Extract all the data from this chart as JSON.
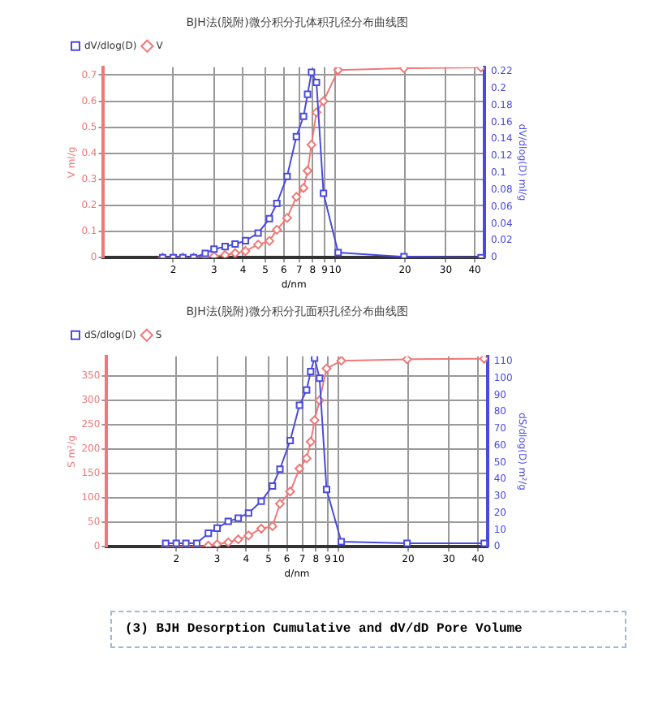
{
  "chart_data": [
    {
      "type": "line",
      "title": "BJH法(脱附)微分积分孔体积孔径分布曲线图",
      "xlabel": "d/nm",
      "ylabel": "V ml/g",
      "y2label": "dV/dlog(D) ml/g",
      "log": "x",
      "grid": true,
      "legend": "top left",
      "line_style": "solid",
      "x": [
        1.8,
        2.0,
        2.2,
        2.45,
        2.75,
        3.0,
        3.35,
        3.7,
        4.1,
        4.65,
        5.2,
        5.6,
        6.2,
        6.8,
        7.3,
        7.6,
        7.9,
        8.3,
        8.9,
        10.3,
        19.8,
        42.6
      ],
      "xlim": [
        1,
        44
      ],
      "xticks": [
        2,
        3,
        4,
        5,
        6,
        7,
        8,
        9,
        10,
        20,
        30,
        40
      ],
      "ylim": [
        0,
        0.73
      ],
      "yticks": [
        0,
        0.1,
        0.2,
        0.3,
        0.4,
        0.5,
        0.6,
        0.7
      ],
      "y2lim": [
        0,
        0.225
      ],
      "y2ticks": [
        0,
        0.02,
        0.04,
        0.06,
        0.08,
        0.1,
        0.12,
        0.14,
        0.16,
        0.18,
        0.2,
        0.22
      ],
      "series": [
        {
          "name": "dV/dlog(D)",
          "color": "#4a4ae0",
          "marker": "square",
          "axis": "y2",
          "values": [
            0,
            0,
            0,
            0,
            0.005,
            0.01,
            0.013,
            0.016,
            0.02,
            0.029,
            0.046,
            0.064,
            0.096,
            0.143,
            0.167,
            0.193,
            0.219,
            0.207,
            0.076,
            0.006,
            0.001,
            0
          ]
        },
        {
          "name": "V",
          "color": "#f07878",
          "marker": "diamond",
          "values": [
            0,
            0,
            0,
            0,
            0.002,
            0.005,
            0.01,
            0.017,
            0.025,
            0.05,
            0.064,
            0.107,
            0.152,
            0.233,
            0.267,
            0.333,
            0.433,
            0.557,
            0.6,
            0.719,
            0.726,
            0.729
          ]
        }
      ]
    },
    {
      "type": "line",
      "title": "BJH法(脱附)微分积分孔面积孔径分布曲线图",
      "xlabel": "d/nm",
      "ylabel": "S m²/g",
      "y2label": "dS/dlog(D) m²/g",
      "log": "x",
      "grid": true,
      "legend": "top left",
      "line_style": "solid",
      "x": [
        1.8,
        2.0,
        2.2,
        2.45,
        2.75,
        3.0,
        3.35,
        3.7,
        4.1,
        4.65,
        5.2,
        5.6,
        6.2,
        6.8,
        7.3,
        7.6,
        7.9,
        8.3,
        8.9,
        10.3,
        19.8,
        42.6
      ],
      "xlim": [
        1,
        44
      ],
      "xticks": [
        2,
        3,
        4,
        5,
        6,
        7,
        8,
        9,
        10,
        20,
        30,
        40
      ],
      "ylim": [
        0,
        390
      ],
      "yticks": [
        0,
        50,
        100,
        150,
        200,
        250,
        300,
        350
      ],
      "y2lim": [
        0,
        113
      ],
      "y2ticks": [
        0,
        10,
        20,
        30,
        40,
        50,
        60,
        70,
        80,
        90,
        100,
        110
      ],
      "annotations": [
        "(3) BJH Desorption Cumulative and dV/dD Pore Volume"
      ],
      "series": [
        {
          "name": "dS/dlog(D)",
          "color": "#4a4ae0",
          "marker": "square",
          "axis": "y2",
          "values": [
            2,
            2,
            2,
            2,
            8,
            11,
            15,
            17,
            20,
            27,
            36,
            46,
            63,
            84,
            93,
            104,
            112,
            100,
            34,
            3,
            2,
            2
          ]
        },
        {
          "name": "S",
          "color": "#f07878",
          "marker": "diamond",
          "values": [
            0,
            0,
            0,
            0,
            2,
            5,
            9,
            15,
            23,
            37,
            42,
            88,
            113,
            160,
            181,
            215,
            259,
            300,
            365,
            381,
            384,
            385
          ]
        }
      ]
    }
  ]
}
